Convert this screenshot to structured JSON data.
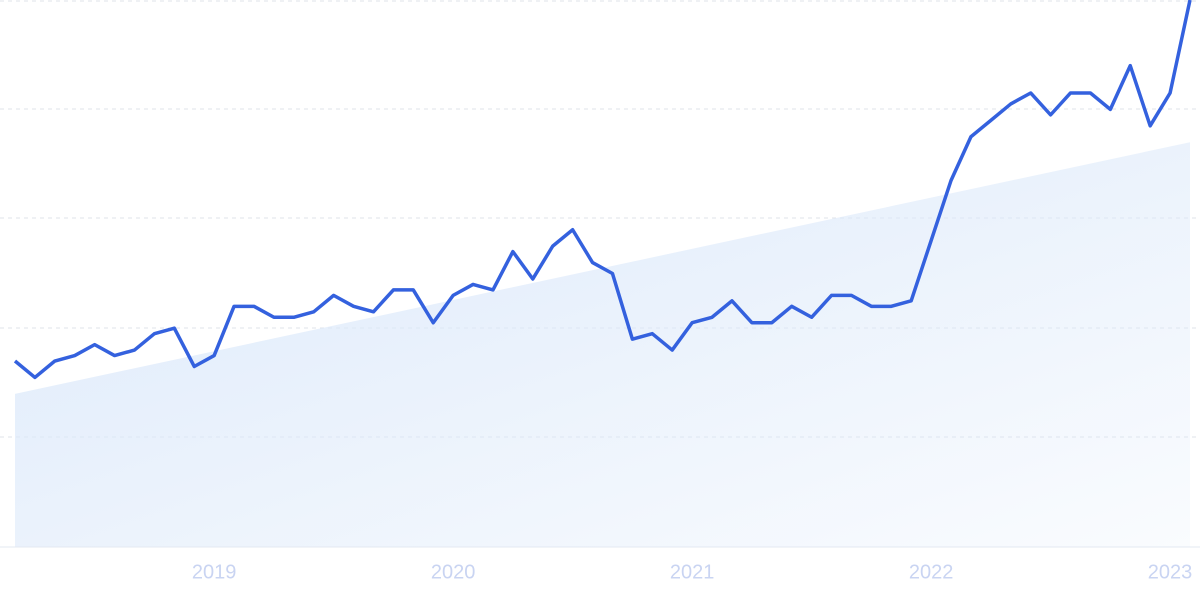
{
  "chart_data": {
    "type": "line",
    "categories": [
      null,
      null,
      null,
      null,
      null,
      null,
      null,
      null,
      null,
      null,
      "2019",
      null,
      null,
      null,
      null,
      null,
      null,
      null,
      null,
      null,
      null,
      null,
      "2020",
      null,
      null,
      null,
      null,
      null,
      null,
      null,
      null,
      null,
      null,
      null,
      "2021",
      null,
      null,
      null,
      null,
      null,
      null,
      null,
      null,
      null,
      null,
      null,
      "2022",
      null,
      null,
      null,
      null,
      null,
      null,
      null,
      null,
      null,
      null,
      null,
      "2023",
      null
    ],
    "values": [
      34,
      31,
      34,
      35,
      37,
      35,
      36,
      39,
      40,
      33,
      35,
      44,
      44,
      42,
      42,
      43,
      46,
      44,
      43,
      47,
      47,
      41,
      46,
      48,
      47,
      54,
      49,
      55,
      58,
      52,
      50,
      38,
      39,
      36,
      41,
      42,
      45,
      41,
      41,
      44,
      42,
      46,
      46,
      44,
      44,
      45,
      56,
      67,
      75,
      78,
      81,
      83,
      79,
      83,
      83,
      80,
      88,
      77,
      83,
      100
    ],
    "color": "#3461de",
    "trend": {
      "values": [
        28,
        74
      ],
      "color": "#dce9fa"
    },
    "ylim": [
      0,
      100
    ]
  }
}
